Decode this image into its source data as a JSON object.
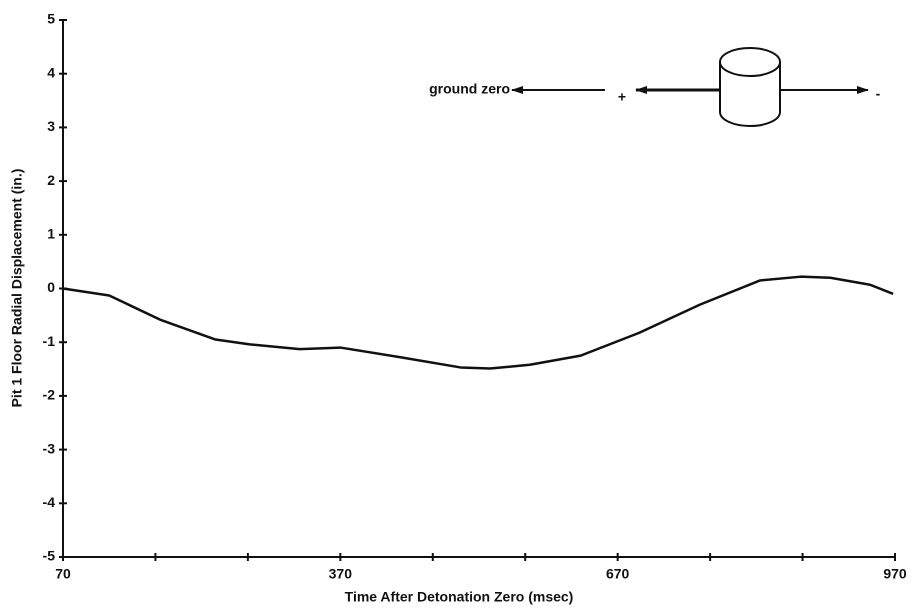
{
  "chart_data": {
    "type": "line",
    "x_label": "Time After Detonation Zero (msec)",
    "y_label": "Pit 1 Floor Radial Displacement (in.)",
    "annotations": [
      "ground zero",
      "+",
      "-"
    ],
    "x": [
      70,
      120,
      175,
      235,
      272,
      326,
      370,
      435,
      500,
      532,
      575,
      630,
      694,
      759,
      824,
      868,
      900,
      943,
      968
    ],
    "series": [
      {
        "color": "#111111",
        "values": [
          0.0,
          -0.13,
          -0.58,
          -0.95,
          -1.04,
          -1.13,
          -1.1,
          -1.28,
          -1.47,
          -1.49,
          -1.42,
          -1.25,
          -0.82,
          -0.3,
          0.15,
          0.22,
          0.2,
          0.07,
          -0.1
        ]
      }
    ],
    "xlim": [
      70,
      970
    ],
    "xticks": [
      70,
      370,
      670,
      970
    ],
    "xminorticks": [
      170,
      270,
      470,
      570,
      770,
      870
    ],
    "ylim": [
      -5,
      5
    ],
    "yticks": [
      -5,
      -4,
      -3,
      -2,
      -1,
      0,
      1,
      2,
      3,
      4,
      5
    ]
  }
}
